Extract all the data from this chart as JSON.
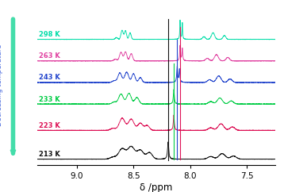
{
  "xlabel": "δ /ppm",
  "xlim": [
    9.35,
    7.25
  ],
  "xticks": [
    9.0,
    8.5,
    8.0,
    7.5
  ],
  "xtick_labels": [
    "9.0",
    "8.5",
    "8.0",
    "7.5"
  ],
  "temperatures": [
    "298 K",
    "263 K",
    "243 K",
    "233 K",
    "223 K",
    "213 K"
  ],
  "temp_colors": [
    "#00dda8",
    "#e040a0",
    "#2244cc",
    "#00cc44",
    "#dd1155",
    "#111111"
  ],
  "y_offsets": [
    5.0,
    4.1,
    3.2,
    2.3,
    1.2,
    0.0
  ],
  "vlines": [
    {
      "x": 8.195,
      "color": "#111111"
    },
    {
      "x": 8.145,
      "color": "#00cc44"
    },
    {
      "x": 8.115,
      "color": "#2244cc"
    },
    {
      "x": 8.09,
      "color": "#dd1155"
    }
  ],
  "arrow_color": "#44ddaa",
  "arrow_label_color": "#4466dd",
  "background": "#ffffff",
  "noise": 0.004,
  "scale": 0.72
}
